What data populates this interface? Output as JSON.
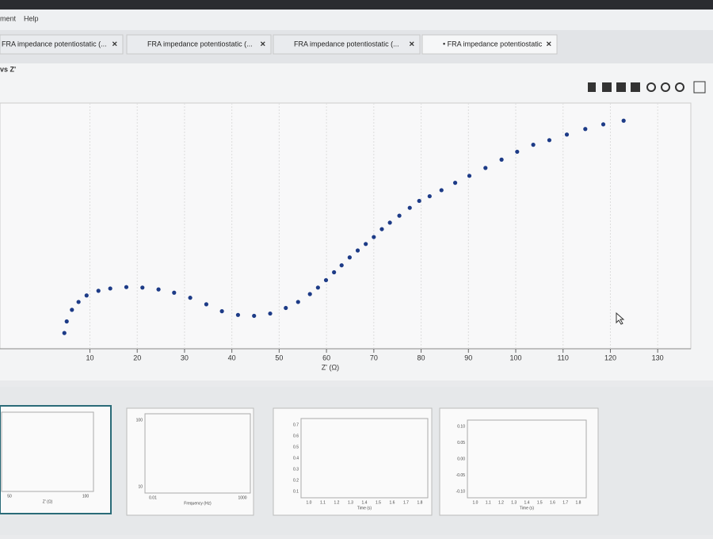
{
  "menu": [
    "ment",
    "Help"
  ],
  "tabs": [
    "FRA impedance potentiostatic (...",
    "FRA impedance potentiostatic (...",
    "FRA impedance potentiostatic (...",
    "• FRA impedance potentiostatic"
  ],
  "panel_title": "vs Z'",
  "chart_data": {
    "type": "scatter",
    "x_label": "Z' (Ω)",
    "x": [
      4.6,
      5.1,
      6.2,
      7.6,
      9.3,
      11.8,
      14.3,
      17.7,
      21.1,
      24.5,
      27.8,
      31.2,
      34.6,
      37.9,
      41.3,
      44.7,
      48.1,
      51.4,
      54.0,
      56.5,
      58.2,
      59.9,
      61.6,
      63.2,
      64.9,
      66.6,
      68.3,
      70.0,
      71.7,
      73.4,
      75.4,
      77.6,
      79.6,
      81.8,
      84.3,
      87.2,
      90.2,
      93.6,
      97.0,
      100.3,
      103.7,
      107.1,
      110.8,
      114.7,
      118.5,
      122.8
    ],
    "values": [
      3.4,
      5.9,
      8.4,
      10.1,
      11.5,
      12.5,
      13.0,
      13.3,
      13.2,
      12.8,
      12.1,
      11.0,
      9.6,
      8.1,
      7.3,
      7.1,
      7.6,
      8.8,
      10.1,
      11.8,
      13.2,
      14.8,
      16.5,
      18.0,
      19.7,
      21.2,
      22.6,
      24.1,
      25.8,
      27.2,
      28.7,
      30.4,
      31.9,
      32.9,
      34.2,
      35.8,
      37.3,
      39.0,
      40.8,
      42.5,
      44.0,
      45.0,
      46.2,
      47.4,
      48.4,
      49.2
    ],
    "color": "#1d3b87",
    "xlim": [
      -9,
      137
    ],
    "ylim": [
      0,
      53
    ],
    "xticks": [
      10,
      20,
      30,
      40,
      50,
      60,
      70,
      80,
      90,
      100,
      110,
      120,
      130
    ],
    "grid": true
  },
  "thumbnails": [
    {
      "x_label": "Z' (Ω)",
      "x_ticks": [
        "50",
        "100"
      ],
      "y_ticks": []
    },
    {
      "x_label": "Frequency (Hz)",
      "x_ticks": [
        "0.01",
        "1000"
      ],
      "y_ticks": [
        "100",
        "10"
      ]
    },
    {
      "x_label": "Time (s)",
      "x_ticks": [
        "1.0",
        "1.1",
        "1.2",
        "1.3",
        "1.4",
        "1.5",
        "1.6",
        "1.7",
        "1.8"
      ],
      "y_ticks": [
        "0.7",
        "0.6",
        "0.5",
        "0.4",
        "0.3",
        "0.2",
        "0.1"
      ]
    },
    {
      "x_label": "Time (s)",
      "x_ticks": [
        "1.0",
        "1.1",
        "1.2",
        "1.3",
        "1.4",
        "1.5",
        "1.6",
        "1.7",
        "1.8"
      ],
      "y_ticks": [
        "0.10",
        "0.05",
        "0.00",
        "-0.05",
        "-0.10"
      ]
    }
  ]
}
